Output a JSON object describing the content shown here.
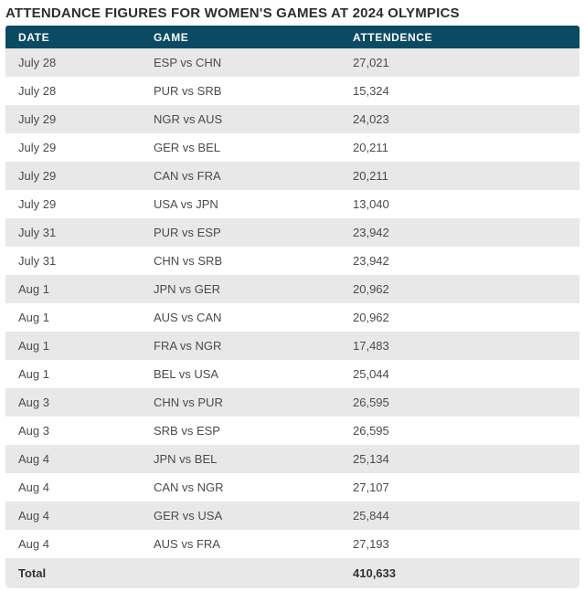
{
  "page": {
    "title": "ATTENDANCE FIGURES FOR WOMEN'S GAMES AT 2024 OLYMPICS"
  },
  "table": {
    "columns": [
      "DATE",
      "GAME",
      "ATTENDENCE"
    ],
    "rows": [
      {
        "date": "July 28",
        "game": "ESP vs CHN",
        "attendance": "27,021"
      },
      {
        "date": "July 28",
        "game": "PUR vs SRB",
        "attendance": "15,324"
      },
      {
        "date": "July 29",
        "game": "NGR vs AUS",
        "attendance": "24,023"
      },
      {
        "date": "July 29",
        "game": "GER vs BEL",
        "attendance": "20,211"
      },
      {
        "date": "July 29",
        "game": "CAN vs FRA",
        "attendance": "20,211"
      },
      {
        "date": "July 29",
        "game": "USA vs JPN",
        "attendance": "13,040"
      },
      {
        "date": "July 31",
        "game": "PUR vs ESP",
        "attendance": "23,942"
      },
      {
        "date": "July 31",
        "game": "CHN vs SRB",
        "attendance": "23,942"
      },
      {
        "date": "Aug 1",
        "game": "JPN vs GER",
        "attendance": "20,962"
      },
      {
        "date": "Aug 1",
        "game": "AUS vs CAN",
        "attendance": "20,962"
      },
      {
        "date": "Aug 1",
        "game": "FRA vs NGR",
        "attendance": "17,483"
      },
      {
        "date": "Aug 1",
        "game": "BEL vs USA",
        "attendance": "25,044"
      },
      {
        "date": "Aug 3",
        "game": "CHN vs PUR",
        "attendance": "26,595"
      },
      {
        "date": "Aug 3",
        "game": "SRB vs ESP",
        "attendance": "26,595"
      },
      {
        "date": "Aug 4",
        "game": "JPN vs BEL",
        "attendance": "25,134"
      },
      {
        "date": "Aug 4",
        "game": "CAN vs NGR",
        "attendance": "27,107"
      },
      {
        "date": "Aug 4",
        "game": "GER vs USA",
        "attendance": "25,844"
      },
      {
        "date": "Aug 4",
        "game": "AUS vs FRA",
        "attendance": "27,193"
      }
    ],
    "total": {
      "label": "Total",
      "value": "410,633"
    }
  },
  "colors": {
    "header_bg": "#0b4a63",
    "header_text": "#ffffff",
    "row_alt_bg": "#e8e8e8",
    "row_bg": "#ffffff",
    "body_text": "#4b4b4b",
    "title_text": "#2e2e2e"
  },
  "chart_data": {
    "type": "table",
    "title": "ATTENDANCE FIGURES FOR WOMEN'S GAMES AT 2024 OLYMPICS",
    "columns": [
      "DATE",
      "GAME",
      "ATTENDENCE"
    ],
    "rows": [
      [
        "July 28",
        "ESP vs CHN",
        27021
      ],
      [
        "July 28",
        "PUR vs SRB",
        15324
      ],
      [
        "July 29",
        "NGR vs AUS",
        24023
      ],
      [
        "July 29",
        "GER vs BEL",
        20211
      ],
      [
        "July 29",
        "CAN vs FRA",
        20211
      ],
      [
        "July 29",
        "USA vs JPN",
        13040
      ],
      [
        "July 31",
        "PUR vs ESP",
        23942
      ],
      [
        "July 31",
        "CHN vs SRB",
        23942
      ],
      [
        "Aug 1",
        "JPN vs GER",
        20962
      ],
      [
        "Aug 1",
        "AUS vs CAN",
        20962
      ],
      [
        "Aug 1",
        "FRA vs NGR",
        17483
      ],
      [
        "Aug 1",
        "BEL vs USA",
        25044
      ],
      [
        "Aug 3",
        "CHN vs PUR",
        26595
      ],
      [
        "Aug 3",
        "SRB vs ESP",
        26595
      ],
      [
        "Aug 4",
        "JPN vs BEL",
        25134
      ],
      [
        "Aug 4",
        "CAN vs NGR",
        27107
      ],
      [
        "Aug 4",
        "GER vs USA",
        25844
      ],
      [
        "Aug 4",
        "AUS vs FRA",
        27193
      ]
    ],
    "total": 410633
  }
}
